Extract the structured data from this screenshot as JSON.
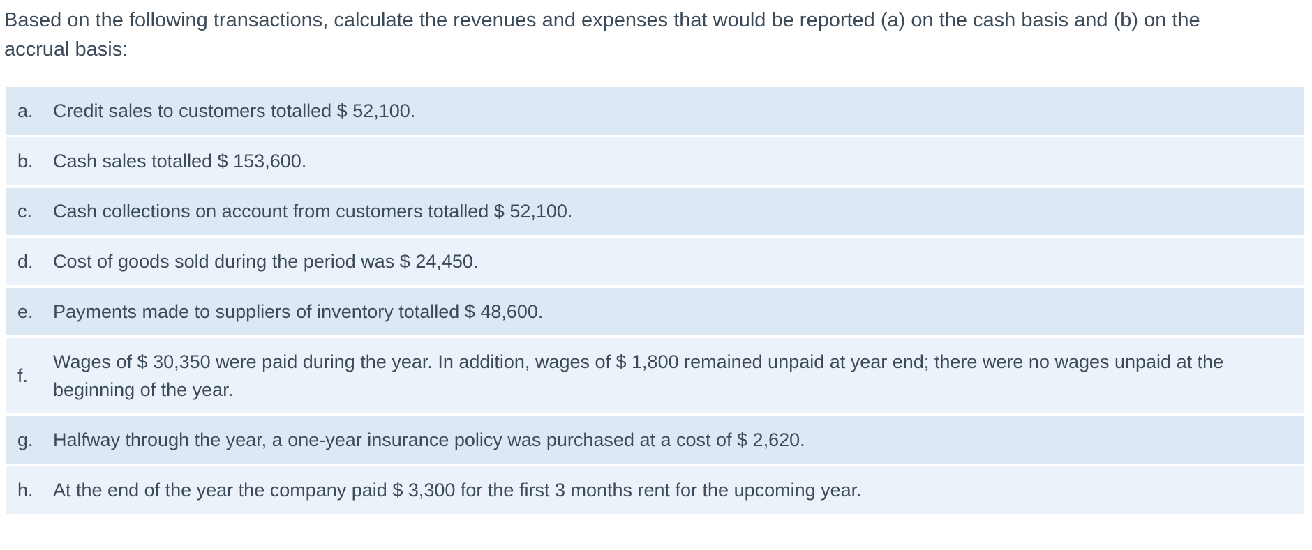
{
  "question": {
    "line1": "Based on the following transactions, calculate the revenues and expenses that would be reported (a) on the cash basis and (b) on the",
    "line2": "accrual basis:"
  },
  "transactions": [
    {
      "label": "a.",
      "text": "Credit sales to customers totalled $ 52,100."
    },
    {
      "label": "b.",
      "text": "Cash sales totalled $ 153,600."
    },
    {
      "label": "c.",
      "text": "Cash collections on account from customers totalled $ 52,100."
    },
    {
      "label": "d.",
      "text": "Cost of goods sold during the period was $ 24,450."
    },
    {
      "label": "e.",
      "text": "Payments made to suppliers of inventory totalled $ 48,600."
    },
    {
      "label": "f.",
      "text": "Wages of $ 30,350 were paid during the year. In addition, wages of $ 1,800 remained unpaid at year end; there were no wages unpaid at the beginning of the year."
    },
    {
      "label": "g.",
      "text": "Halfway through the year, a one-year insurance policy was purchased at a cost of $ 2,620."
    },
    {
      "label": "h.",
      "text": "At the end of the year the company paid $ 3,300 for the first 3 months rent for the upcoming year."
    }
  ],
  "colors": {
    "row_dark": "#dce8f4",
    "row_light": "#ebf2fa",
    "text": "#3c4b59",
    "background": "#ffffff"
  }
}
